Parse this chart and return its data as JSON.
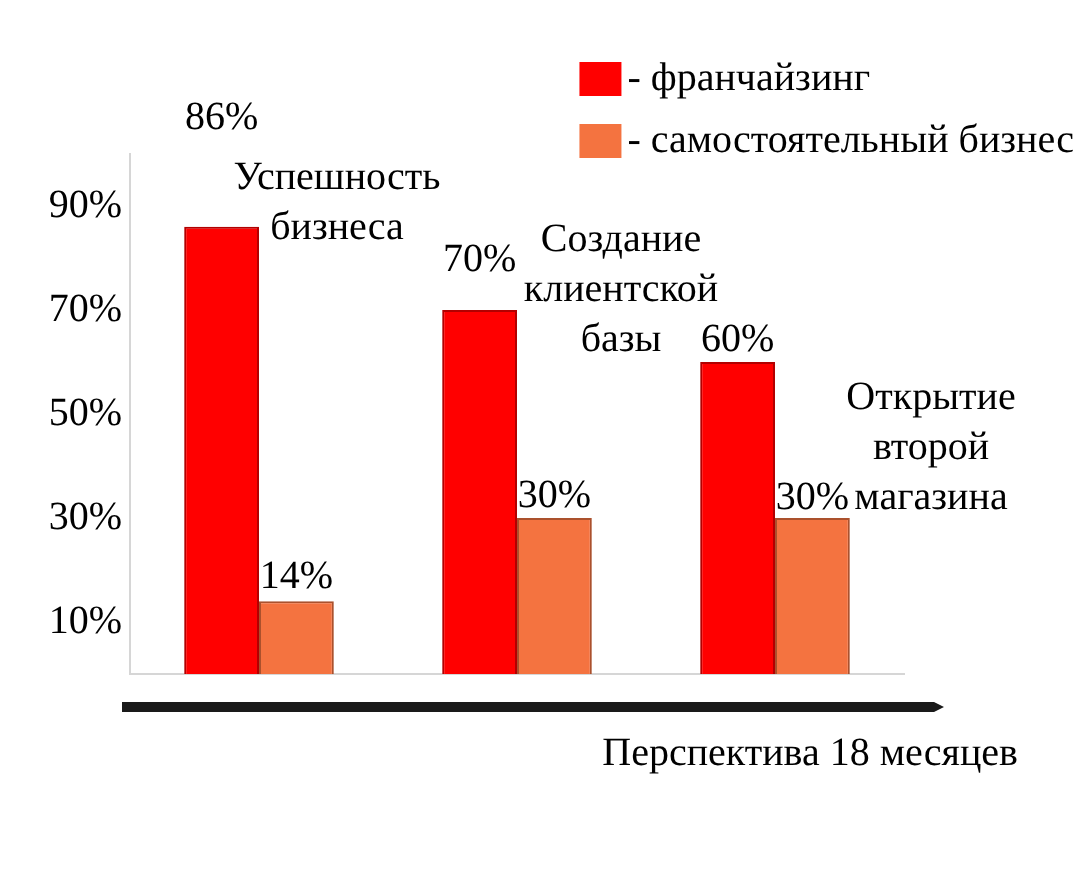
{
  "chart_data": {
    "type": "bar",
    "categories": [
      null,
      null,
      null
    ],
    "series": [
      {
        "name": "- франчайзинг",
        "color": "#ff0000",
        "values": [
          86,
          70,
          60
        ],
        "value_labels": [
          "86%",
          "70%",
          "60%"
        ]
      },
      {
        "name": "- самостоятельный бизнес",
        "color": "#f47340",
        "values": [
          14,
          30,
          30
        ],
        "value_labels": [
          "14%",
          "30%",
          "30%"
        ]
      }
    ],
    "annotations": [
      "Успешность бизнеса",
      "Создание клиентской базы",
      "Открытие второй магазина"
    ],
    "ylim": [
      0,
      100
    ],
    "yticks": [
      {
        "value": 10,
        "label": "10%"
      },
      {
        "value": 30,
        "label": "30%"
      },
      {
        "value": 50,
        "label": "50%"
      },
      {
        "value": 70,
        "label": "70%"
      },
      {
        "value": 90,
        "label": "90%"
      }
    ],
    "xlabel": "Перспектива 18 месяцев",
    "legend": "top right",
    "grid": false
  }
}
